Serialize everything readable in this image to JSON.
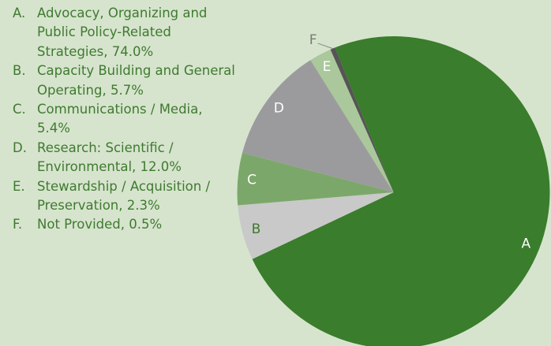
{
  "chart_data": {
    "type": "pie",
    "letters": [
      "A",
      "B",
      "C",
      "D",
      "E",
      "F"
    ],
    "legend_letters": [
      "A.",
      "B.",
      "C.",
      "D.",
      "E.",
      "F."
    ],
    "categories": [
      "Advocacy, Organizing and Public Policy-Related Strategies, 74.0%",
      "Capacity Building and General Operating, 5.7%",
      "Communications / Media, 5.4%",
      "Research: Scientific / Environmental, 12.0%",
      "Stewardship / Acquisition / Preservation, 2.3%",
      "Not Provided, 0.5%"
    ],
    "values": [
      74.0,
      5.7,
      5.4,
      12.0,
      2.3,
      0.5
    ],
    "colors": [
      "#3a7d2c",
      "#c9c9c9",
      "#7ba86a",
      "#9b9b9d",
      "#aac89b",
      "#555555"
    ],
    "label_colors": [
      "#ffffff",
      "#3f7a30",
      "#ffffff",
      "#ffffff",
      "#ffffff",
      "#7a7a7a"
    ]
  }
}
